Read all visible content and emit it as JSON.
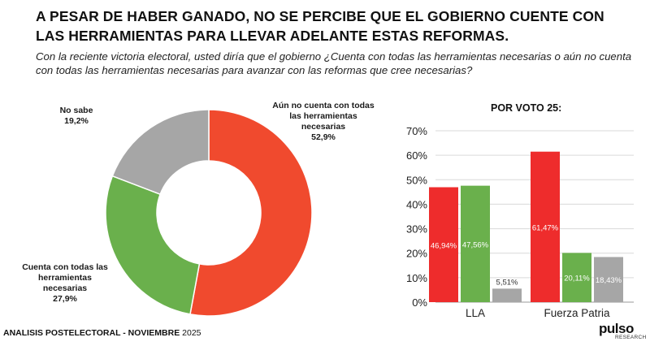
{
  "title": "A PESAR DE HABER GANADO, NO SE PERCIBE QUE EL GOBIERNO CUENTE CON LAS HERRAMIENTAS PARA LLEVAR ADELANTE ESTAS REFORMAS.",
  "subtitle": "Con la reciente victoria electoral, usted diría que el gobierno ¿Cuenta con todas las herramientas necesarias o aún no cuenta con todas las herramientas necesarias para avanzar con las reformas que cree necesarias?",
  "footer": {
    "bold": "ANALISIS POSTELECTORAL - NOVIEMBRE",
    "rest": " 2025"
  },
  "logo": {
    "word": "pulso",
    "sub": "RESEARCH"
  },
  "chart_data": [
    {
      "type": "pie",
      "donut": true,
      "title": "",
      "slices": [
        {
          "label": "Aún no cuenta con todas las herramientas necesarias",
          "value": 52.9,
          "value_label": "52,9%",
          "color": "#f04a2e"
        },
        {
          "label": "Cuenta con todas las herramientas necesarias",
          "value": 27.9,
          "value_label": "27,9%",
          "color": "#6ab04c"
        },
        {
          "label": "No sabe",
          "value": 19.2,
          "value_label": "19,2%",
          "color": "#a6a6a6"
        }
      ]
    },
    {
      "type": "bar",
      "title": "POR VOTO 25:",
      "categories": [
        "LLA",
        "Fuerza Patria"
      ],
      "series": [
        {
          "name": "Aún no cuenta con todas las herramientas necesarias",
          "color": "#ee2c2c",
          "values": [
            46.94,
            61.47
          ],
          "labels": [
            "46,94%",
            "61,47%"
          ]
        },
        {
          "name": "Cuenta con todas las herramientas necesarias",
          "color": "#6ab04c",
          "values": [
            47.56,
            20.11
          ],
          "labels": [
            "47,56%",
            "20,11%"
          ]
        },
        {
          "name": "No sabe",
          "color": "#a6a6a6",
          "values": [
            5.51,
            18.43
          ],
          "labels": [
            "5,51%",
            "18,43%"
          ]
        }
      ],
      "ylim": [
        0,
        70
      ],
      "yticks": [
        0,
        10,
        20,
        30,
        40,
        50,
        60,
        70
      ],
      "ytick_labels": [
        "0%",
        "10%",
        "20%",
        "30%",
        "40%",
        "50%",
        "60%",
        "70%"
      ],
      "grid": true,
      "xlabel": "",
      "ylabel": ""
    }
  ]
}
